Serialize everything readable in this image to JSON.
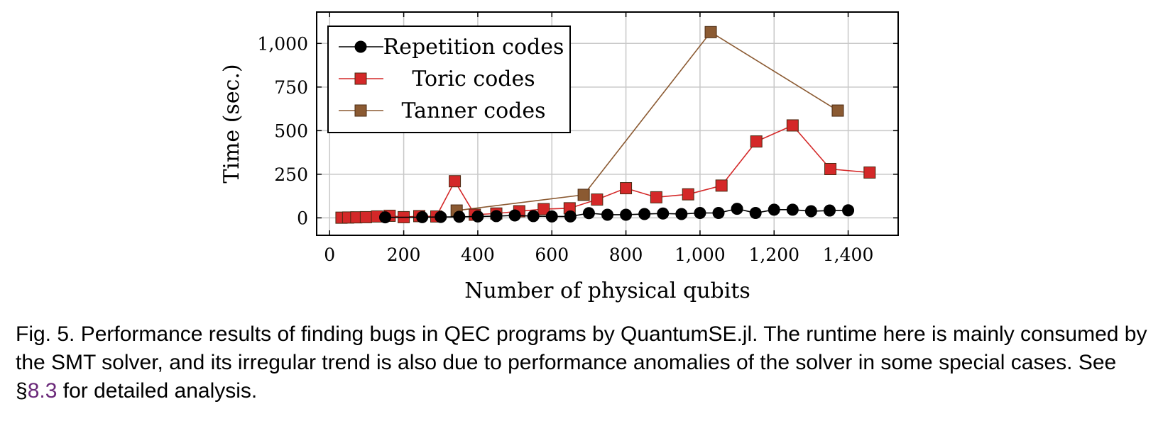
{
  "chart_data": {
    "type": "line",
    "xlabel": "Number of physical qubits",
    "ylabel": "Time (sec.)",
    "xlim": [
      -35,
      1535
    ],
    "ylim": [
      -100,
      1180
    ],
    "xticks": [
      0,
      200,
      400,
      600,
      800,
      1000,
      1200,
      1400
    ],
    "xtick_labels": [
      "0",
      "200",
      "400",
      "600",
      "800",
      "1,000",
      "1,200",
      "1,400"
    ],
    "yticks": [
      0,
      250,
      500,
      750,
      1000
    ],
    "ytick_labels": [
      "0",
      "250",
      "500",
      "750",
      "1,000"
    ],
    "grid": true,
    "legend_position": "top-left",
    "series": [
      {
        "name": "Repetition codes",
        "color": "#000000",
        "marker": "circle",
        "x": [
          150,
          250,
          300,
          350,
          400,
          450,
          500,
          550,
          600,
          650,
          700,
          750,
          800,
          850,
          900,
          950,
          1000,
          1050,
          1100,
          1150,
          1200,
          1250,
          1300,
          1350,
          1400
        ],
        "y": [
          3,
          4,
          5,
          6,
          8,
          10,
          14,
          10,
          8,
          8,
          27,
          18,
          18,
          22,
          25,
          22,
          28,
          28,
          52,
          28,
          47,
          47,
          38,
          42,
          43
        ]
      },
      {
        "name": "Toric codes",
        "color": "#d42828",
        "marker": "square",
        "x": [
          32,
          50,
          72,
          98,
          128,
          162,
          200,
          242,
          288,
          338,
          392,
          450,
          512,
          578,
          648,
          722,
          800,
          882,
          968,
          1058,
          1152,
          1250,
          1352,
          1458
        ],
        "y": [
          1,
          2,
          3,
          4,
          8,
          12,
          4,
          10,
          8,
          210,
          18,
          25,
          38,
          50,
          55,
          105,
          170,
          118,
          135,
          185,
          438,
          530,
          280,
          260
        ]
      },
      {
        "name": "Tanner codes",
        "color": "#8b5a32",
        "marker": "square",
        "x": [
          343,
          686,
          1029,
          1372
        ],
        "y": [
          42,
          132,
          1065,
          615
        ]
      }
    ]
  },
  "caption": {
    "text_before": "Fig. 5.  Performance results of finding bugs in QEC programs by QuantumSE.jl. The runtime here is mainly consumed by the SMT solver, and its irregular trend is also due to performance anomalies of the solver in some special cases. See §",
    "ref": "8.3",
    "text_after": " for detailed analysis."
  }
}
